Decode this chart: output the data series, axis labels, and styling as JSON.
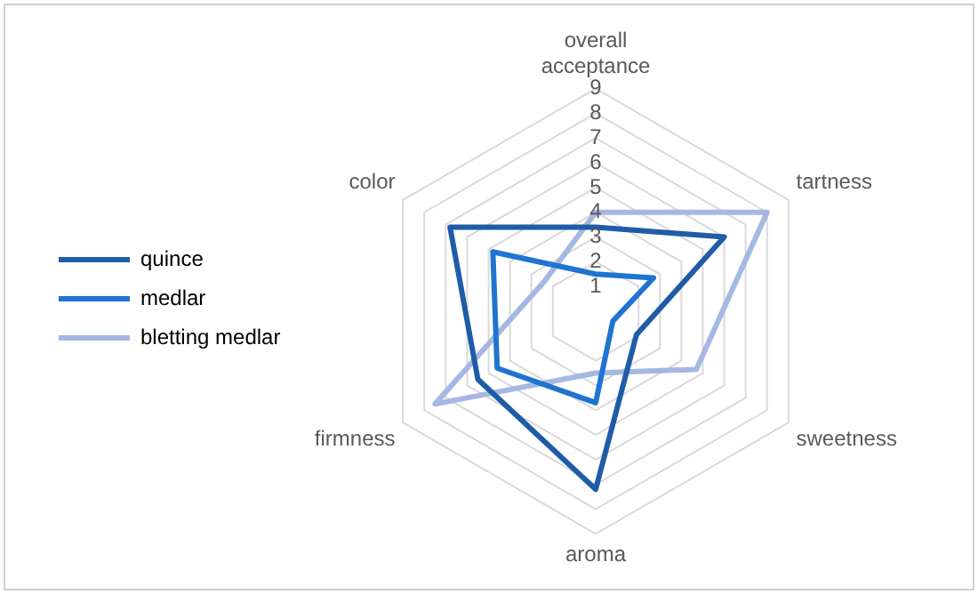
{
  "chart_data": {
    "type": "radar",
    "categories": [
      "overall acceptance",
      "tartness",
      "sweetness",
      "aroma",
      "firmness",
      "color"
    ],
    "series": [
      {
        "name": "quince",
        "color": "#1f5ca8",
        "values": [
          3.4,
          6.0,
          1.9,
          7.2,
          5.5,
          6.8
        ]
      },
      {
        "name": "medlar",
        "color": "#1f74d0",
        "values": [
          1.5,
          2.7,
          0.8,
          3.7,
          4.6,
          4.8
        ]
      },
      {
        "name": "bletting medlar",
        "color": "#a5b8e3",
        "values": [
          4.0,
          8.0,
          4.7,
          2.5,
          7.5,
          2.4
        ]
      }
    ],
    "ylim": [
      0,
      9
    ],
    "yticks": [
      1,
      2,
      3,
      4,
      5,
      6,
      7,
      8,
      9
    ],
    "grid": true,
    "legend": "left",
    "marker": "none"
  }
}
